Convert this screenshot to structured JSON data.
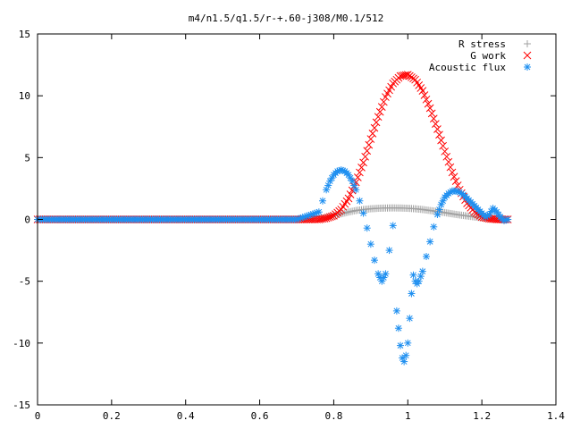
{
  "chart_data": {
    "type": "scatter",
    "title": "m4/n1.5/q1.5/r-+.60-j308/M0.1/512",
    "xlabel": "",
    "ylabel": "",
    "xlim": [
      0,
      1.4
    ],
    "ylim": [
      -15,
      15
    ],
    "x_ticks": [
      "0",
      "0.2",
      "0.4",
      "0.6",
      "0.8",
      "1",
      "1.2",
      "1.4"
    ],
    "y_ticks": [
      "-15",
      "-10",
      "-5",
      "0",
      "5",
      "10",
      "15"
    ],
    "grid": false,
    "legend_position": "top-right",
    "series": [
      {
        "name": "R stress",
        "marker": "+",
        "color": "#a0a0a0",
        "x": [
          0.0,
          0.1,
          0.2,
          0.3,
          0.4,
          0.5,
          0.6,
          0.7,
          0.76,
          0.78,
          0.8,
          0.82,
          0.84,
          0.86,
          0.88,
          0.9,
          0.92,
          0.94,
          0.96,
          0.98,
          1.0,
          1.02,
          1.04,
          1.06,
          1.08,
          1.1,
          1.12,
          1.14,
          1.16,
          1.18,
          1.2,
          1.22,
          1.24,
          1.26,
          1.27
        ],
        "y": [
          0,
          0,
          0,
          0,
          0,
          0,
          0,
          0,
          0.05,
          0.15,
          0.3,
          0.45,
          0.6,
          0.72,
          0.8,
          0.86,
          0.9,
          0.92,
          0.93,
          0.92,
          0.9,
          0.86,
          0.8,
          0.72,
          0.64,
          0.55,
          0.45,
          0.36,
          0.28,
          0.2,
          0.13,
          0.08,
          0.04,
          0.01,
          0.0
        ]
      },
      {
        "name": "G work",
        "marker": "x",
        "color": "#ff0000",
        "x": [
          0.0,
          0.1,
          0.2,
          0.3,
          0.4,
          0.5,
          0.6,
          0.7,
          0.76,
          0.78,
          0.8,
          0.82,
          0.84,
          0.86,
          0.88,
          0.9,
          0.92,
          0.94,
          0.96,
          0.98,
          1.0,
          1.02,
          1.04,
          1.06,
          1.08,
          1.1,
          1.12,
          1.14,
          1.16,
          1.18,
          1.2,
          1.22,
          1.24,
          1.26,
          1.27
        ],
        "y": [
          0,
          0,
          0,
          0,
          0,
          0,
          0,
          0,
          0.0,
          0.1,
          0.3,
          0.8,
          1.7,
          3.0,
          4.6,
          6.5,
          8.3,
          9.9,
          11.0,
          11.6,
          11.7,
          11.3,
          10.4,
          9.0,
          7.3,
          5.5,
          3.8,
          2.4,
          1.3,
          0.6,
          0.2,
          0.05,
          0.0,
          0.0,
          0.0
        ]
      },
      {
        "name": "Acoustic flux",
        "marker": "*",
        "color": "#1e8ff0",
        "x": [
          0.0,
          0.1,
          0.2,
          0.3,
          0.4,
          0.5,
          0.6,
          0.7,
          0.76,
          0.77,
          0.78,
          0.79,
          0.8,
          0.81,
          0.82,
          0.83,
          0.84,
          0.85,
          0.86,
          0.87,
          0.88,
          0.89,
          0.9,
          0.91,
          0.92,
          0.93,
          0.94,
          0.95,
          0.96,
          0.97,
          0.975,
          0.98,
          0.985,
          0.99,
          0.995,
          1.0,
          1.005,
          1.01,
          1.015,
          1.02,
          1.025,
          1.03,
          1.04,
          1.05,
          1.06,
          1.07,
          1.08,
          1.09,
          1.1,
          1.11,
          1.12,
          1.13,
          1.14,
          1.15,
          1.16,
          1.17,
          1.18,
          1.19,
          1.2,
          1.21,
          1.22,
          1.23,
          1.24,
          1.25,
          1.26,
          1.27
        ],
        "y": [
          0,
          0,
          0,
          0,
          0,
          0,
          0,
          0,
          0.6,
          1.5,
          2.4,
          3.1,
          3.6,
          3.9,
          4.0,
          3.9,
          3.6,
          3.1,
          2.4,
          1.5,
          0.5,
          -0.7,
          -2.0,
          -3.3,
          -4.4,
          -5.0,
          -4.4,
          -2.5,
          -0.5,
          -7.4,
          -8.8,
          -10.2,
          -11.2,
          -11.5,
          -11.0,
          -10.0,
          -8.0,
          -6.0,
          -4.5,
          -5.0,
          -5.2,
          -5.0,
          -4.2,
          -3.0,
          -1.8,
          -0.6,
          0.4,
          1.2,
          1.8,
          2.1,
          2.3,
          2.3,
          2.2,
          2.0,
          1.7,
          1.4,
          1.1,
          0.8,
          0.5,
          0.2,
          0.4,
          0.9,
          0.6,
          0.2,
          -0.1,
          0.0
        ]
      }
    ]
  }
}
